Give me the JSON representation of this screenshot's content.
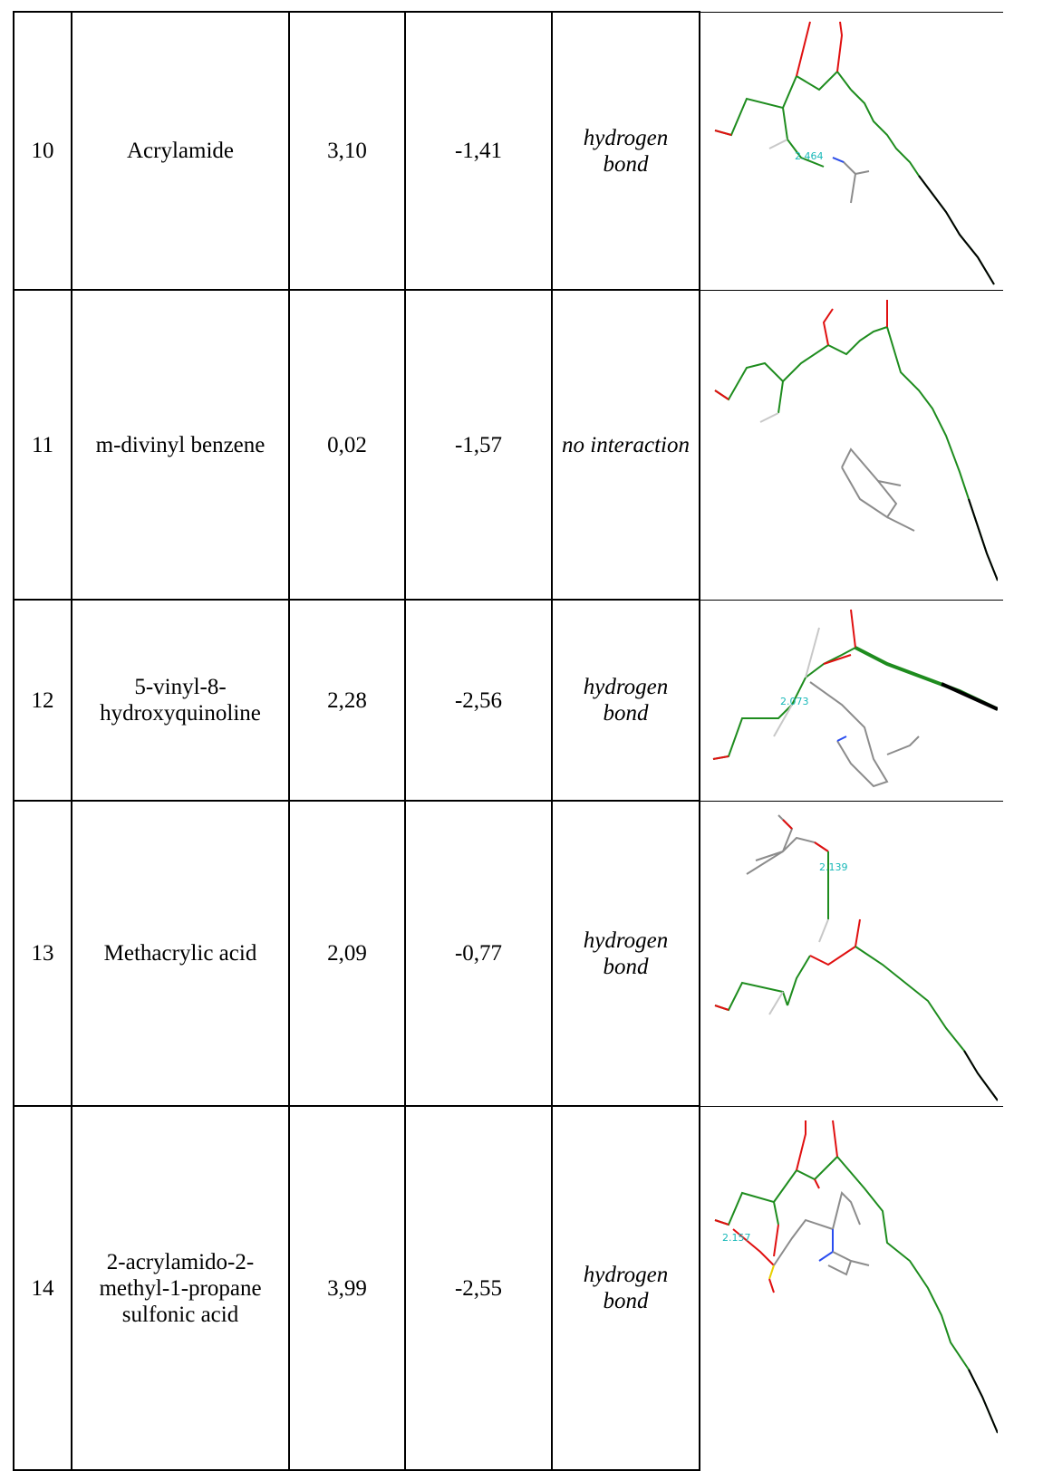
{
  "rows": [
    {
      "no": "10",
      "name": "Acrylamide",
      "value1": "3,10",
      "value2": "-1,41",
      "interaction": "hydrogen bond",
      "distance_label": "2.464"
    },
    {
      "no": "11",
      "name": "m-divinyl benzene",
      "value1": "0,02",
      "value2": "-1,57",
      "interaction": "no interaction",
      "distance_label": ""
    },
    {
      "no": "12",
      "name": "5-vinyl-8-hydroxyquinoline",
      "value1": "2,28",
      "value2": "-2,56",
      "interaction": "hydrogen bond",
      "distance_label": "2.073"
    },
    {
      "no": "13",
      "name": "Methacrylic acid",
      "value1": "2,09",
      "value2": "-0,77",
      "interaction": "hydrogen bond",
      "distance_label": "2.139"
    },
    {
      "no": "14",
      "name": "2-acrylamido-2-methyl-1-propane sulfonic acid",
      "value1": "3,99",
      "value2": "-2,55",
      "interaction": "hydrogen bond",
      "distance_label": "2.157"
    }
  ],
  "colors": {
    "carbon_green": "#1e8c1e",
    "oxygen": "#e01010",
    "hydrogen": "#c8c8c8",
    "nitrogen": "#2a4df0",
    "ligand": "#8c8c8c",
    "sulfur": "#e8d000",
    "label": "#17b8b8"
  }
}
